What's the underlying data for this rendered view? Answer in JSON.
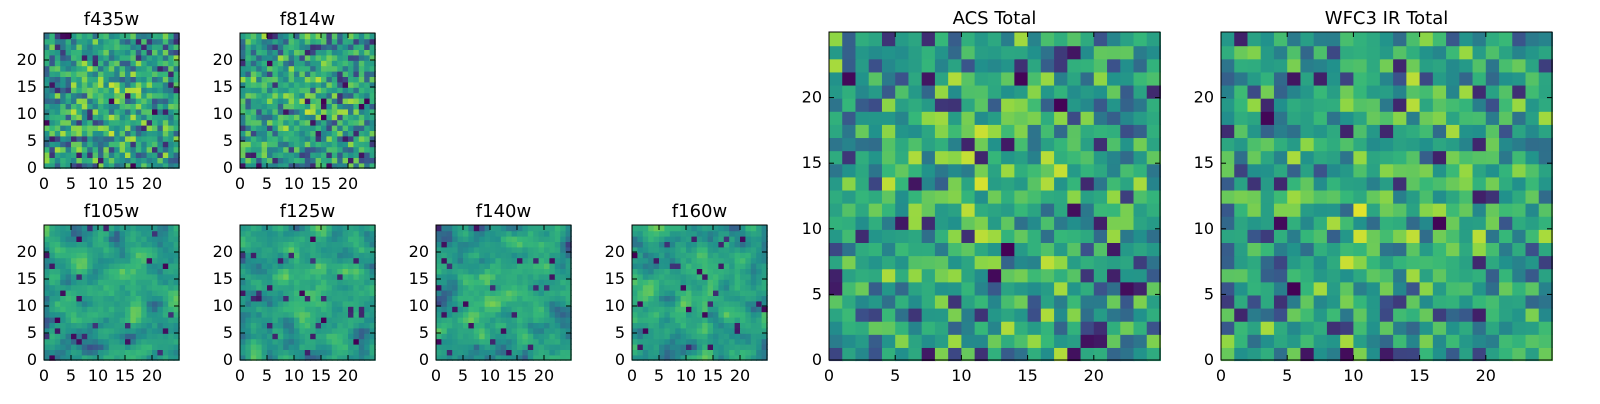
{
  "figure": {
    "charts": [
      {
        "id": "f435w",
        "title": "f435w",
        "size": "small"
      },
      {
        "id": "f814w",
        "title": "f814w",
        "size": "small"
      },
      {
        "id": "f105w",
        "title": "f105w",
        "size": "small"
      },
      {
        "id": "f125w",
        "title": "f125w",
        "size": "small"
      },
      {
        "id": "f140w",
        "title": "f140w",
        "size": "small"
      },
      {
        "id": "f160w",
        "title": "f160w",
        "size": "small"
      },
      {
        "id": "acs-total",
        "title": "ACS Total",
        "size": "large"
      },
      {
        "id": "wfc3-ir-total",
        "title": "WFC3 IR Total",
        "size": "large"
      }
    ]
  },
  "chart_data": [
    {
      "type": "heatmap",
      "title": "f435w",
      "xlabel": "",
      "ylabel": "",
      "grid": false,
      "legend": "none",
      "shape": [
        25,
        25
      ],
      "xlim": [
        0,
        25
      ],
      "ylim": [
        0,
        25
      ],
      "xticks": [
        0,
        5,
        10,
        15,
        20
      ],
      "yticks": [
        0,
        5,
        10,
        15,
        20
      ],
      "colormap": "viridis",
      "data_source": "synthetic_random_field_approximation"
    },
    {
      "type": "heatmap",
      "title": "f814w",
      "xlabel": "",
      "ylabel": "",
      "grid": false,
      "legend": "none",
      "shape": [
        25,
        25
      ],
      "xlim": [
        0,
        25
      ],
      "ylim": [
        0,
        25
      ],
      "xticks": [
        0,
        5,
        10,
        15,
        20
      ],
      "yticks": [
        0,
        5,
        10,
        15,
        20
      ],
      "colormap": "viridis",
      "data_source": "synthetic_random_field_approximation"
    },
    {
      "type": "heatmap",
      "title": "f105w",
      "xlabel": "",
      "ylabel": "",
      "grid": false,
      "legend": "none",
      "shape": [
        25,
        25
      ],
      "xlim": [
        0,
        25
      ],
      "ylim": [
        0,
        25
      ],
      "xticks": [
        0,
        5,
        10,
        15,
        20
      ],
      "yticks": [
        0,
        5,
        10,
        15,
        20
      ],
      "colormap": "viridis",
      "data_source": "synthetic_random_field_approximation"
    },
    {
      "type": "heatmap",
      "title": "f125w",
      "xlabel": "",
      "ylabel": "",
      "grid": false,
      "legend": "none",
      "shape": [
        25,
        25
      ],
      "xlim": [
        0,
        25
      ],
      "ylim": [
        0,
        25
      ],
      "xticks": [
        0,
        5,
        10,
        15,
        20
      ],
      "yticks": [
        0,
        5,
        10,
        15,
        20
      ],
      "colormap": "viridis",
      "data_source": "synthetic_random_field_approximation"
    },
    {
      "type": "heatmap",
      "title": "f140w",
      "xlabel": "",
      "ylabel": "",
      "grid": false,
      "legend": "none",
      "shape": [
        25,
        25
      ],
      "xlim": [
        0,
        25
      ],
      "ylim": [
        0,
        25
      ],
      "xticks": [
        0,
        5,
        10,
        15,
        20
      ],
      "yticks": [
        0,
        5,
        10,
        15,
        20
      ],
      "colormap": "viridis",
      "data_source": "synthetic_random_field_approximation"
    },
    {
      "type": "heatmap",
      "title": "f160w",
      "xlabel": "",
      "ylabel": "",
      "grid": false,
      "legend": "none",
      "shape": [
        25,
        25
      ],
      "xlim": [
        0,
        25
      ],
      "ylim": [
        0,
        25
      ],
      "xticks": [
        0,
        5,
        10,
        15,
        20
      ],
      "yticks": [
        0,
        5,
        10,
        15,
        20
      ],
      "colormap": "viridis",
      "data_source": "synthetic_random_field_approximation"
    },
    {
      "type": "heatmap",
      "title": "ACS Total",
      "xlabel": "",
      "ylabel": "",
      "grid": false,
      "legend": "none",
      "shape": [
        25,
        25
      ],
      "xlim": [
        0,
        25
      ],
      "ylim": [
        0,
        25
      ],
      "xticks": [
        0,
        5,
        10,
        15,
        20
      ],
      "yticks": [
        0,
        5,
        10,
        15,
        20
      ],
      "colormap": "viridis",
      "data_source": "synthetic_random_field_approximation"
    },
    {
      "type": "heatmap",
      "title": "WFC3 IR Total",
      "xlabel": "",
      "ylabel": "",
      "grid": false,
      "legend": "none",
      "shape": [
        25,
        25
      ],
      "xlim": [
        0,
        25
      ],
      "ylim": [
        0,
        25
      ],
      "xticks": [
        0,
        5,
        10,
        15,
        20
      ],
      "yticks": [
        0,
        5,
        10,
        15,
        20
      ],
      "colormap": "viridis",
      "data_source": "synthetic_random_field_approximation"
    }
  ]
}
